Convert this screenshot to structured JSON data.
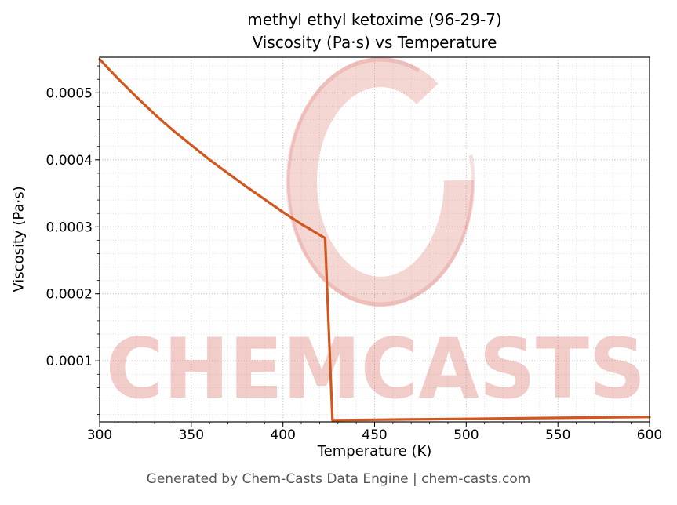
{
  "figure": {
    "title_line1": "methyl ethyl ketoxime (96-29-7)",
    "title_line2": "Viscosity (Pa·s) vs Temperature",
    "footer": "Generated by Chem-Casts Data Engine | chem-casts.com",
    "watermark_text": "CHEMCASTS",
    "watermark_color": "#cd4637"
  },
  "chart_data": {
    "type": "line",
    "title": "methyl ethyl ketoxime (96-29-7) — Viscosity (Pa·s) vs Temperature",
    "xlabel": "Temperature (K)",
    "ylabel": "Viscosity (Pa·s)",
    "xlim": [
      300,
      600
    ],
    "ylim": [
      9e-06,
      0.000553
    ],
    "x_ticks": [
      300,
      350,
      400,
      450,
      500,
      550,
      600
    ],
    "y_ticks": [
      0.0001,
      0.0002,
      0.0003,
      0.0004,
      0.0005
    ],
    "y_tick_labels": [
      "0.0001",
      "0.0002",
      "0.0003",
      "0.0004",
      "0.0005"
    ],
    "x_minor_step": 10,
    "y_minor_step": 2e-05,
    "grid": true,
    "legend": false,
    "line_color": "#d2571e",
    "line_width": 3.2,
    "series": [
      {
        "name": "viscosity",
        "points": [
          [
            300,
            0.00055
          ],
          [
            310,
            0.000521
          ],
          [
            320,
            0.000494
          ],
          [
            330,
            0.000468
          ],
          [
            340,
            0.000444
          ],
          [
            350,
            0.000422
          ],
          [
            360,
            0.0004
          ],
          [
            370,
            0.00038
          ],
          [
            380,
            0.00036
          ],
          [
            390,
            0.000341
          ],
          [
            400,
            0.000322
          ],
          [
            410,
            0.000304
          ],
          [
            420,
            0.000288
          ],
          [
            423,
            0.000283
          ],
          [
            427,
            1.15e-05
          ],
          [
            450,
            1.22e-05
          ],
          [
            500,
            1.35e-05
          ],
          [
            550,
            1.5e-05
          ],
          [
            600,
            1.62e-05
          ]
        ]
      }
    ]
  }
}
